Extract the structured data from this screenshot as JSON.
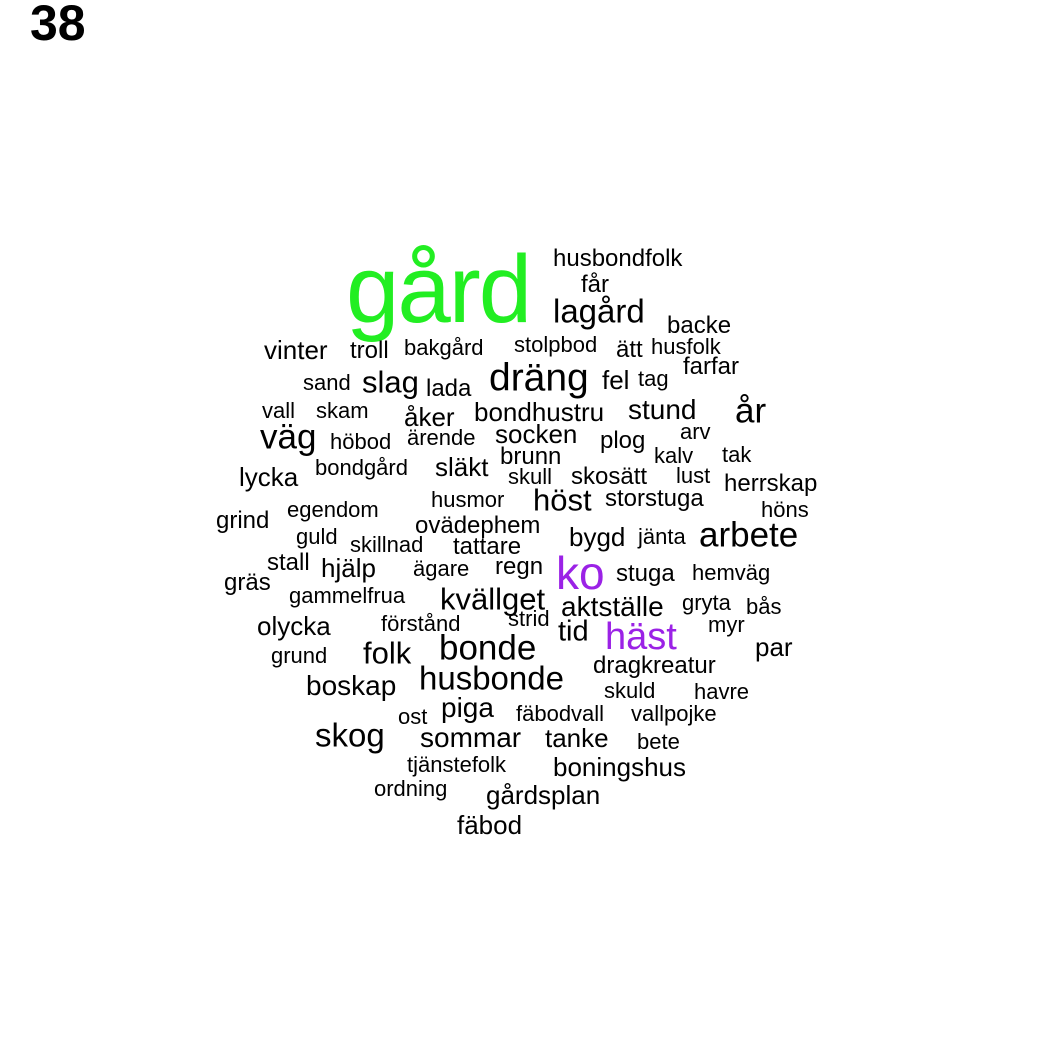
{
  "page_number": "38",
  "colors": {
    "black": "#000000",
    "green": "#22ee22",
    "purple": "#9b22e6"
  },
  "words": [
    {
      "text": "gård",
      "weight": 100,
      "color": "#22ee22"
    },
    {
      "text": "husbondfolk",
      "weight": 7,
      "color": "#000000"
    },
    {
      "text": "får",
      "weight": 7,
      "color": "#000000"
    },
    {
      "text": "lagård",
      "weight": 18,
      "color": "#000000"
    },
    {
      "text": "backe",
      "weight": 8,
      "color": "#000000"
    },
    {
      "text": "vinter",
      "weight": 10,
      "color": "#000000"
    },
    {
      "text": "troll",
      "weight": 9,
      "color": "#000000"
    },
    {
      "text": "bakgård",
      "weight": 7,
      "color": "#000000"
    },
    {
      "text": "stolpbod",
      "weight": 7,
      "color": "#000000"
    },
    {
      "text": "ätt",
      "weight": 8,
      "color": "#000000"
    },
    {
      "text": "husfolk",
      "weight": 7,
      "color": "#000000"
    },
    {
      "text": "farfar",
      "weight": 8,
      "color": "#000000"
    },
    {
      "text": "sand",
      "weight": 7,
      "color": "#000000"
    },
    {
      "text": "slag",
      "weight": 14,
      "color": "#000000"
    },
    {
      "text": "lada",
      "weight": 8,
      "color": "#000000"
    },
    {
      "text": "dräng",
      "weight": 24,
      "color": "#000000"
    },
    {
      "text": "fel",
      "weight": 9,
      "color": "#000000"
    },
    {
      "text": "tag",
      "weight": 7,
      "color": "#000000"
    },
    {
      "text": "vall",
      "weight": 7,
      "color": "#000000"
    },
    {
      "text": "skam",
      "weight": 7,
      "color": "#000000"
    },
    {
      "text": "åker",
      "weight": 9,
      "color": "#000000"
    },
    {
      "text": "bondhustru",
      "weight": 9,
      "color": "#000000"
    },
    {
      "text": "stund",
      "weight": 11,
      "color": "#000000"
    },
    {
      "text": "år",
      "weight": 16,
      "color": "#000000"
    },
    {
      "text": "väg",
      "weight": 20,
      "color": "#000000"
    },
    {
      "text": "höbod",
      "weight": 7,
      "color": "#000000"
    },
    {
      "text": "ärende",
      "weight": 7,
      "color": "#000000"
    },
    {
      "text": "socken",
      "weight": 10,
      "color": "#000000"
    },
    {
      "text": "plog",
      "weight": 8,
      "color": "#000000"
    },
    {
      "text": "arv",
      "weight": 7,
      "color": "#000000"
    },
    {
      "text": "tak",
      "weight": 7,
      "color": "#000000"
    },
    {
      "text": "brunn",
      "weight": 8,
      "color": "#000000"
    },
    {
      "text": "kalv",
      "weight": 7,
      "color": "#000000"
    },
    {
      "text": "lycka",
      "weight": 9,
      "color": "#000000"
    },
    {
      "text": "bondgård",
      "weight": 7,
      "color": "#000000"
    },
    {
      "text": "släkt",
      "weight": 10,
      "color": "#000000"
    },
    {
      "text": "skull",
      "weight": 7,
      "color": "#000000"
    },
    {
      "text": "skosätt",
      "weight": 8,
      "color": "#000000"
    },
    {
      "text": "lust",
      "weight": 7,
      "color": "#000000"
    },
    {
      "text": "herrskap",
      "weight": 8,
      "color": "#000000"
    },
    {
      "text": "husmor",
      "weight": 8,
      "color": "#000000"
    },
    {
      "text": "höst",
      "weight": 14,
      "color": "#000000"
    },
    {
      "text": "storstuga",
      "weight": 8,
      "color": "#000000"
    },
    {
      "text": "grind",
      "weight": 8,
      "color": "#000000"
    },
    {
      "text": "egendom",
      "weight": 7,
      "color": "#000000"
    },
    {
      "text": "höns",
      "weight": 7,
      "color": "#000000"
    },
    {
      "text": "ovädерhem",
      "weight": 7,
      "color": "#000000"
    },
    {
      "text": "arbete",
      "weight": 18,
      "color": "#000000"
    },
    {
      "text": "guld",
      "weight": 7,
      "color": "#000000"
    },
    {
      "text": "skillnad",
      "weight": 7,
      "color": "#000000"
    },
    {
      "text": "tattare",
      "weight": 8,
      "color": "#000000"
    },
    {
      "text": "bygd",
      "weight": 9,
      "color": "#000000"
    },
    {
      "text": "jänta",
      "weight": 7,
      "color": "#000000"
    },
    {
      "text": "stall",
      "weight": 8,
      "color": "#000000"
    },
    {
      "text": "hjälp",
      "weight": 9,
      "color": "#000000"
    },
    {
      "text": "ägare",
      "weight": 7,
      "color": "#000000"
    },
    {
      "text": "regn",
      "weight": 8,
      "color": "#000000"
    },
    {
      "text": "ko",
      "weight": 34,
      "color": "#9b22e6"
    },
    {
      "text": "stuga",
      "weight": 8,
      "color": "#000000"
    },
    {
      "text": "hemväg",
      "weight": 7,
      "color": "#000000"
    },
    {
      "text": "gräs",
      "weight": 7,
      "color": "#000000"
    },
    {
      "text": "gammelfrua",
      "weight": 7,
      "color": "#000000"
    },
    {
      "text": "kvällget",
      "weight": 12,
      "color": "#000000"
    },
    {
      "text": "aktställe",
      "weight": 10,
      "color": "#000000"
    },
    {
      "text": "gryta",
      "weight": 7,
      "color": "#000000"
    },
    {
      "text": "bås",
      "weight": 7,
      "color": "#000000"
    },
    {
      "text": "olycka",
      "weight": 9,
      "color": "#000000"
    },
    {
      "text": "förstånd",
      "weight": 7,
      "color": "#000000"
    },
    {
      "text": "strid",
      "weight": 7,
      "color": "#000000"
    },
    {
      "text": "tid",
      "weight": 12,
      "color": "#000000"
    },
    {
      "text": "häst",
      "weight": 24,
      "color": "#9b22e6"
    },
    {
      "text": "myr",
      "weight": 7,
      "color": "#000000"
    },
    {
      "text": "grund",
      "weight": 7,
      "color": "#000000"
    },
    {
      "text": "folk",
      "weight": 13,
      "color": "#000000"
    },
    {
      "text": "bonde",
      "weight": 20,
      "color": "#000000"
    },
    {
      "text": "par",
      "weight": 9,
      "color": "#000000"
    },
    {
      "text": "dragkreatur",
      "weight": 8,
      "color": "#000000"
    },
    {
      "text": "boskap",
      "weight": 12,
      "color": "#000000"
    },
    {
      "text": "husbonde",
      "weight": 18,
      "color": "#000000"
    },
    {
      "text": "skuld",
      "weight": 7,
      "color": "#000000"
    },
    {
      "text": "havre",
      "weight": 7,
      "color": "#000000"
    },
    {
      "text": "piga",
      "weight": 9,
      "color": "#000000"
    },
    {
      "text": "ost",
      "weight": 7,
      "color": "#000000"
    },
    {
      "text": "fäbodvall",
      "weight": 7,
      "color": "#000000"
    },
    {
      "text": "vallpojke",
      "weight": 7,
      "color": "#000000"
    },
    {
      "text": "skog",
      "weight": 16,
      "color": "#000000"
    },
    {
      "text": "sommar",
      "weight": 14,
      "color": "#000000"
    },
    {
      "text": "tanke",
      "weight": 9,
      "color": "#000000"
    },
    {
      "text": "bete",
      "weight": 7,
      "color": "#000000"
    },
    {
      "text": "tjänstefolk",
      "weight": 7,
      "color": "#000000"
    },
    {
      "text": "boningshus",
      "weight": 9,
      "color": "#000000"
    },
    {
      "text": "ordning",
      "weight": 7,
      "color": "#000000"
    },
    {
      "text": "gårdsplan",
      "weight": 9,
      "color": "#000000"
    },
    {
      "text": "fäbod",
      "weight": 9,
      "color": "#000000"
    }
  ]
}
